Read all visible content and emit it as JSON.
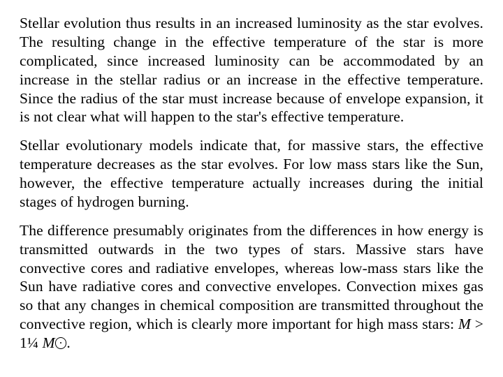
{
  "document": {
    "font_family": "Times New Roman",
    "font_size_pt": 16,
    "text_color": "#000000",
    "background_color": "#ffffff",
    "text_align": "justify",
    "paragraphs": {
      "p1": "Stellar evolution thus results in an increased luminosity as the star evolves. The resulting change in the effective temperature of the star is more complicated, since increased luminosity can be accommodated by an increase in the stellar radius or an increase in the effective temperature. Since the radius of the star must increase because of envelope expansion, it is not clear what will happen to the star's effective temperature.",
      "p2": "Stellar evolutionary models indicate that, for massive stars, the effective temperature decreases as the star evolves. For low mass stars like the Sun, however, the effective temperature actually increases during the initial stages of hydrogen burning.",
      "p3_a": "The difference presumably originates from the differences in how energy is transmitted outwards in the two types of stars. Massive stars have convective cores and radiative envelopes, whereas low-mass stars like the Sun have radiative cores and convective envelopes. Convection mixes gas so that any changes in chemical composition are transmitted throughout the convective region, which is clearly more important for high mass stars: ",
      "p3_var1": "M",
      "p3_mid": " > 1¼ ",
      "p3_var2": "M",
      "p3_end": "."
    }
  }
}
